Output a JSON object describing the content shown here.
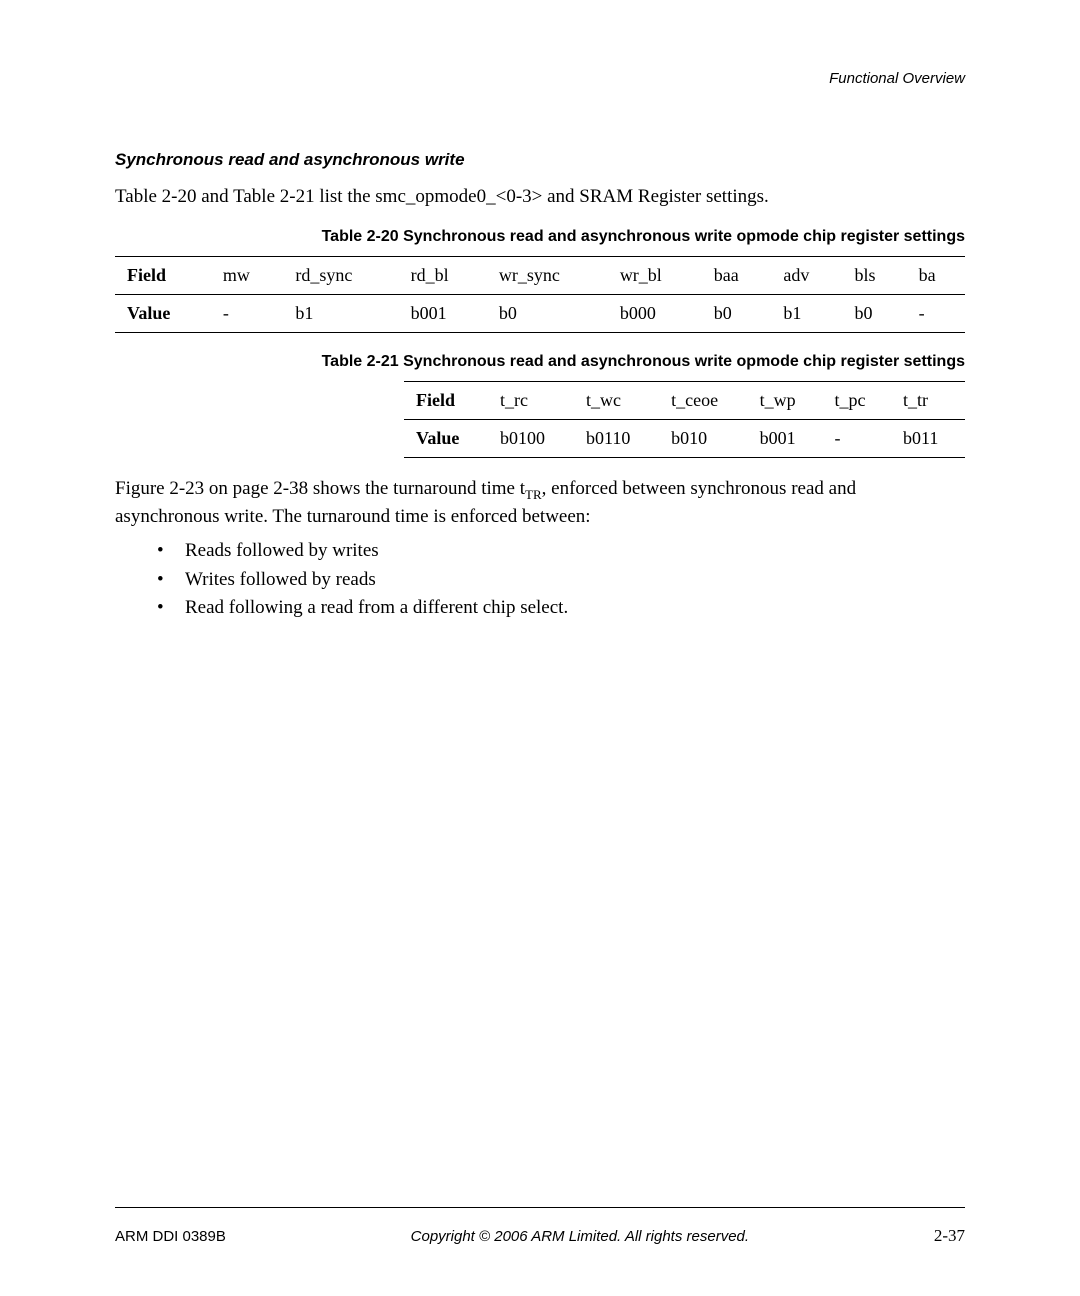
{
  "header": {
    "right": "Functional Overview"
  },
  "section": {
    "title": "Synchronous read and asynchronous write"
  },
  "intro": "Table 2-20 and Table 2-21 list the smc_opmode0_<0-3> and SRAM Register settings.",
  "table20": {
    "caption": "Table 2-20 Synchronous read and asynchronous write opmode chip register settings",
    "headers": [
      "Field",
      "mw",
      "rd_sync",
      "rd_bl",
      "wr_sync",
      "wr_bl",
      "baa",
      "adv",
      "bls",
      "ba"
    ],
    "row_label": "Value",
    "values": [
      "-",
      "b1",
      "b001",
      "b0",
      "b000",
      "b0",
      "b1",
      "b0",
      "-"
    ]
  },
  "table21": {
    "caption": "Table 2-21 Synchronous read and asynchronous write opmode chip register settings",
    "headers": [
      "Field",
      "t_rc",
      "t_wc",
      "t_ceoe",
      "t_wp",
      "t_pc",
      "t_tr"
    ],
    "row_label": "Value",
    "values": [
      "b0100",
      "b0110",
      "b010",
      "b001",
      "-",
      "b011"
    ]
  },
  "para2_pre": "Figure 2-23 on page 2-38 shows the turnaround time t",
  "para2_sub": "TR",
  "para2_post": ", enforced between synchronous read and asynchronous write. The turnaround time is enforced between:",
  "bullets": [
    "Reads followed by writes",
    "Writes followed by reads",
    "Read following a read from a different chip select."
  ],
  "footer": {
    "left": "ARM DDI 0389B",
    "center": "Copyright © 2006 ARM Limited. All rights reserved.",
    "right": "2-37"
  }
}
